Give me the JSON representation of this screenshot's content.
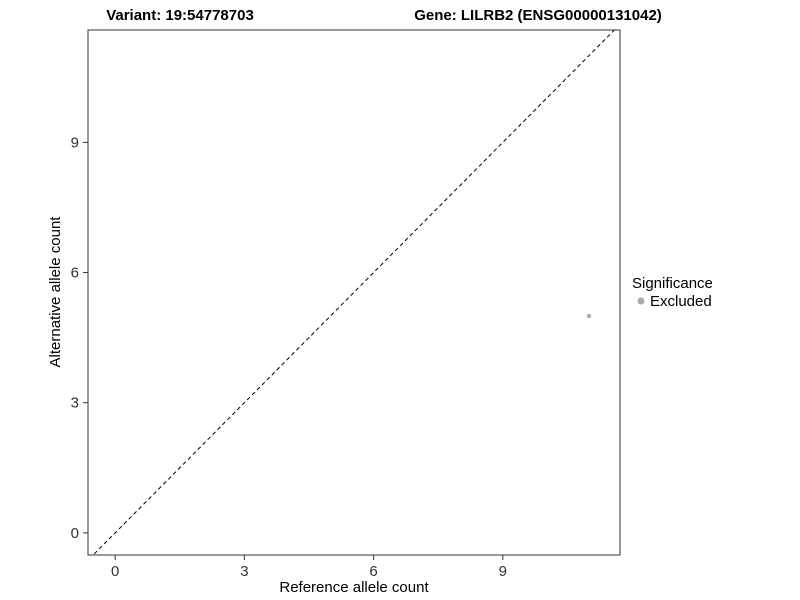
{
  "titles": {
    "variant": "Variant: 19:54778703",
    "gene": "Gene: LILRB2 (ENSG00000131042)"
  },
  "axes": {
    "x_label": "Reference allele count",
    "y_label": "Alternative allele count"
  },
  "legend": {
    "title": "Significance",
    "items": [
      {
        "label": "Excluded",
        "color": "#aaaaaa"
      }
    ]
  },
  "chart_data": {
    "type": "scatter",
    "title_left": "Variant: 19:54778703",
    "title_right": "Gene: LILRB2 (ENSG00000131042)",
    "xlabel": "Reference allele count",
    "ylabel": "Alternative allele count",
    "xlim": [
      -0.63,
      11.72
    ],
    "ylim": [
      -0.51,
      11.59
    ],
    "xticks": [
      0,
      3,
      6,
      9
    ],
    "yticks": [
      0,
      3,
      6,
      9
    ],
    "grid": false,
    "panel_border": true,
    "legend_position": "right",
    "series": [
      {
        "name": "Excluded",
        "color": "#aaaaaa",
        "points": [
          {
            "x": 11,
            "y": 5
          }
        ]
      }
    ],
    "reference_line": {
      "kind": "identity",
      "slope": 1,
      "intercept": 0,
      "style": "dashed",
      "color": "#000000"
    }
  }
}
